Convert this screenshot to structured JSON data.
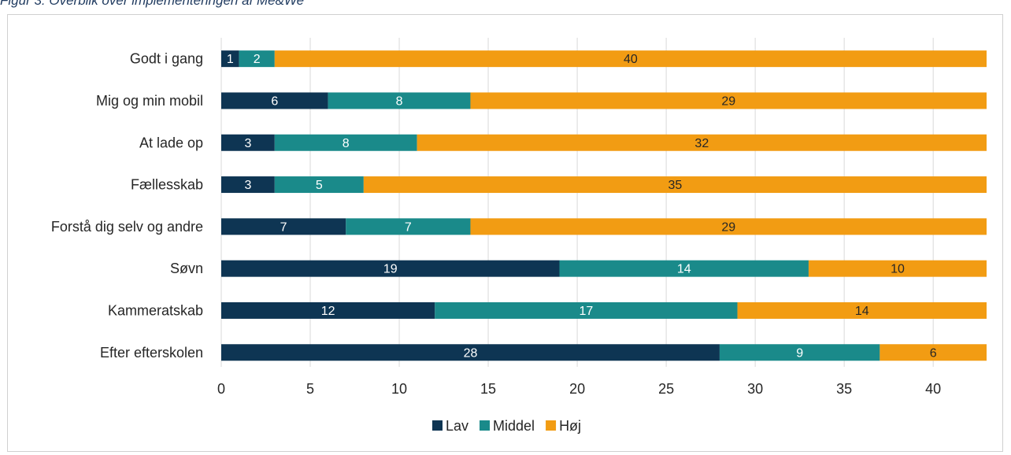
{
  "figure": {
    "caption": "Figur 3: Overblik over implementeringen af Me&We"
  },
  "chart_data": {
    "type": "bar",
    "orientation": "horizontal",
    "stacked": true,
    "categories": [
      "Godt i gang",
      "Mig og min mobil",
      "At lade op",
      "Fællesskab",
      "Forstå dig selv og andre",
      "Søvn",
      "Kammeratskab",
      "Efter efterskolen"
    ],
    "series": [
      {
        "name": "Lav",
        "color": "#0e3553",
        "label_color": "#ffffff",
        "values": [
          1,
          6,
          3,
          3,
          7,
          19,
          12,
          28
        ]
      },
      {
        "name": "Middel",
        "color": "#1a8a8a",
        "label_color": "#ffffff",
        "values": [
          2,
          8,
          8,
          5,
          7,
          14,
          17,
          9
        ]
      },
      {
        "name": "Høj",
        "color": "#f29c13",
        "label_color": "#262626",
        "values": [
          40,
          29,
          32,
          35,
          29,
          10,
          14,
          6
        ]
      }
    ],
    "xlim": [
      0,
      43
    ],
    "xticks": [
      0,
      5,
      10,
      15,
      20,
      25,
      30,
      35,
      40
    ],
    "grid": true,
    "legend": "bottom-center"
  }
}
